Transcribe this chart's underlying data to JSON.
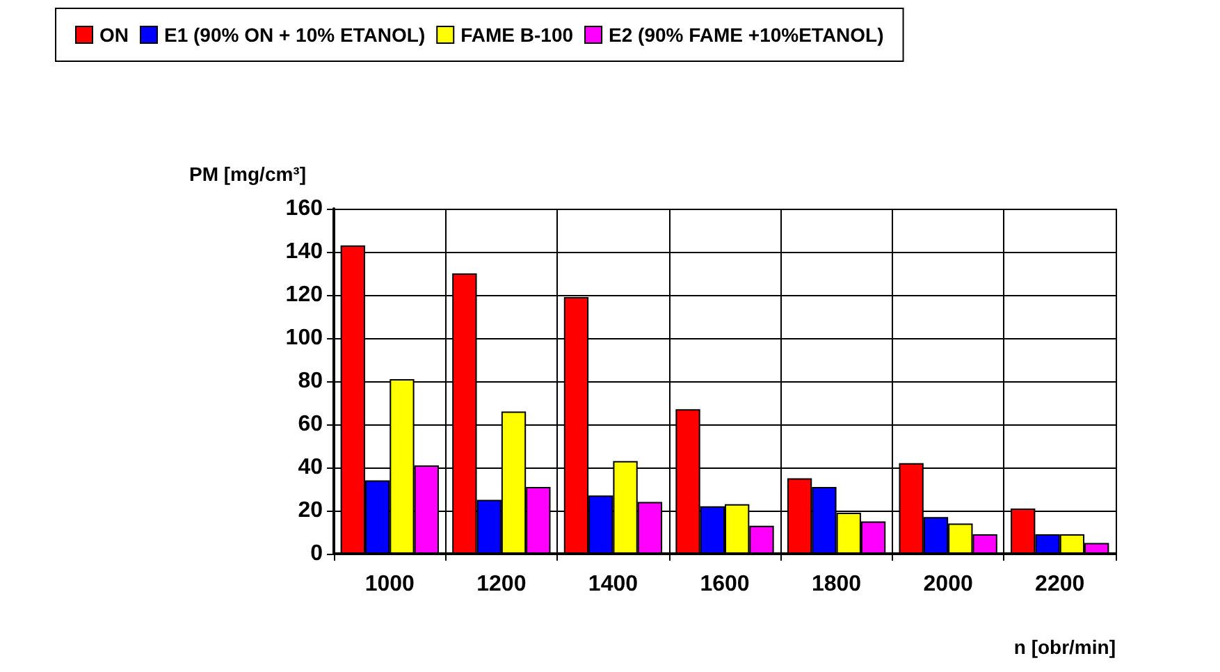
{
  "chart_data": {
    "type": "bar",
    "xlabel": "n [obr/min]",
    "ylabel": "PM [mg/cm³]",
    "categories": [
      "1000",
      "1200",
      "1400",
      "1600",
      "1800",
      "2000",
      "2200"
    ],
    "series": [
      {
        "name": "ON",
        "color": "#ff0000",
        "values": [
          143,
          130,
          119,
          67,
          35,
          42,
          21
        ]
      },
      {
        "name": "E1 (90% ON + 10% ETANOL)",
        "color": "#0000ff",
        "values": [
          34,
          25,
          27,
          22,
          31,
          17,
          9
        ]
      },
      {
        "name": "FAME B-100",
        "color": "#ffff00",
        "values": [
          81,
          66,
          43,
          23,
          19,
          14,
          9
        ]
      },
      {
        "name": "E2 (90% FAME +10%ETANOL)",
        "color": "#ff00ff",
        "values": [
          41,
          31,
          24,
          13,
          15,
          9,
          5
        ]
      }
    ],
    "ylim": [
      0,
      160
    ],
    "yticks": [
      0,
      20,
      40,
      60,
      80,
      100,
      120,
      140,
      160
    ],
    "grid": true,
    "legend": "top"
  }
}
